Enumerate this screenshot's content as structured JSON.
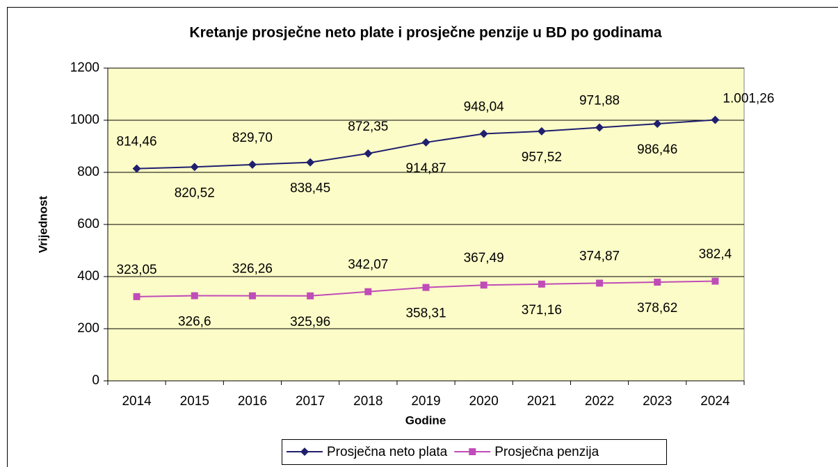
{
  "chart_data": {
    "type": "line",
    "title": "Kretanje prosječne neto plate i prosječne penzije u BD po godinama",
    "x_label": "Godine",
    "y_label": "Vrijednost",
    "categories": [
      "2014",
      "2015",
      "2016",
      "2017",
      "2018",
      "2019",
      "2020",
      "2021",
      "2022",
      "2023",
      "2024"
    ],
    "series": [
      {
        "name": "Prosječna neto plata",
        "color": "#1f1f6e",
        "marker": "diamond",
        "values": [
          814.46,
          820.52,
          829.7,
          838.45,
          872.35,
          914.87,
          948.04,
          957.52,
          971.88,
          986.46,
          1001.26
        ],
        "value_labels": [
          "814,46",
          "820,52",
          "829,70",
          "838,45",
          "872,35",
          "914,87",
          "948,04",
          "957,52",
          "971,88",
          "986,46",
          "1.001,26"
        ]
      },
      {
        "name": "Prosječna penzija",
        "color": "#c04cb8",
        "marker": "square",
        "values": [
          323.05,
          326.6,
          326.26,
          325.96,
          342.07,
          358.31,
          367.49,
          371.16,
          374.87,
          378.62,
          382.4
        ],
        "value_labels": [
          "323,05",
          "326,6",
          "326,26",
          "325,96",
          "342,07",
          "358,31",
          "367,49",
          "371,16",
          "374,87",
          "378,62",
          "382,4"
        ]
      }
    ],
    "ylim": [
      0,
      1200
    ],
    "yticks": [
      0,
      200,
      400,
      600,
      800,
      1000,
      1200
    ],
    "grid": true,
    "plot_background": "#fcfcc8",
    "legend": "bottom"
  }
}
